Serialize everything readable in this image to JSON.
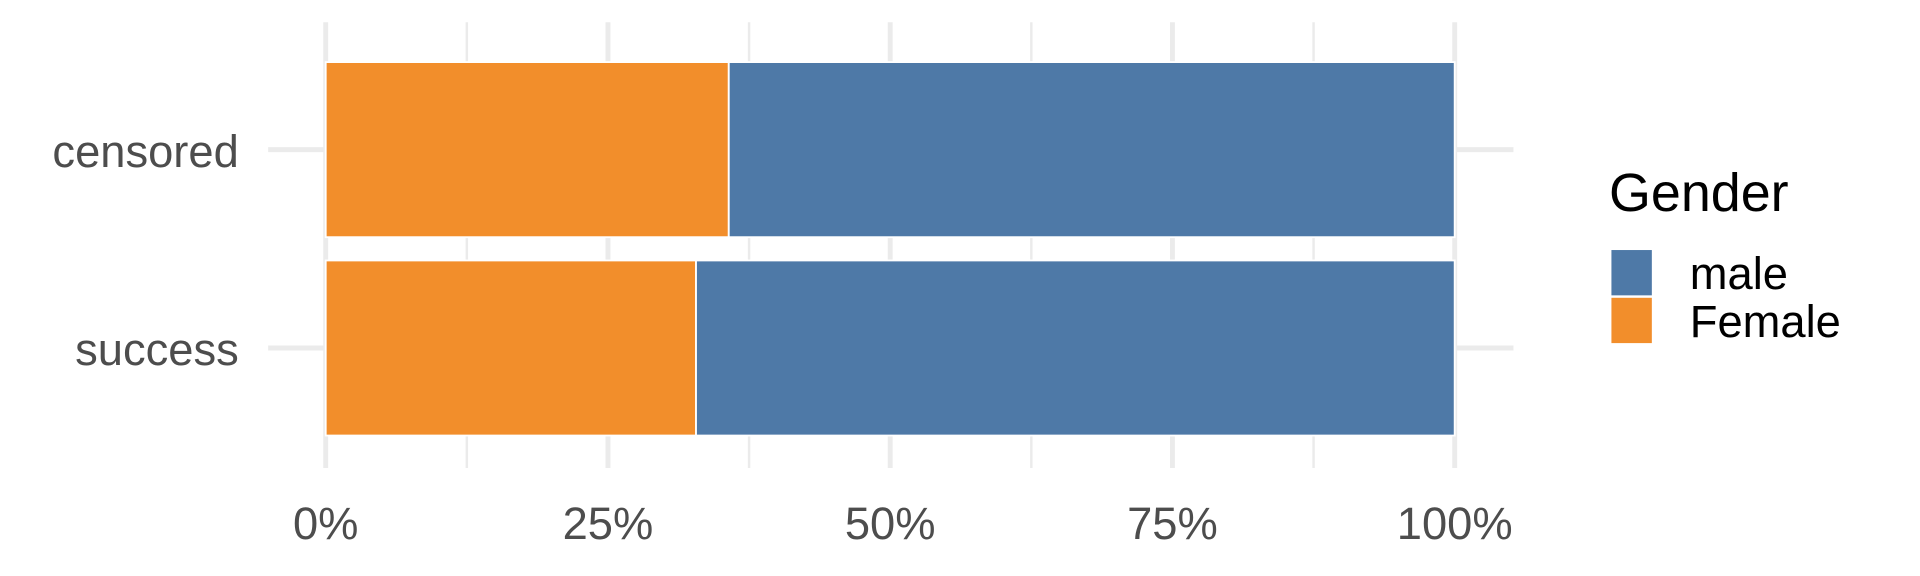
{
  "chart_data": {
    "type": "bar",
    "orientation": "horizontal",
    "stacked": "percent",
    "categories": [
      "censored",
      "success"
    ],
    "series": [
      {
        "name": "Female",
        "color": "#F28E2B",
        "values": [
          0.357,
          0.328
        ]
      },
      {
        "name": "male",
        "color": "#4E79A7",
        "values": [
          0.643,
          0.672
        ]
      }
    ],
    "xlim": [
      0,
      1
    ],
    "xticks": [
      {
        "value": 0,
        "label": "0%"
      },
      {
        "value": 0.25,
        "label": "25%"
      },
      {
        "value": 0.5,
        "label": "50%"
      },
      {
        "value": 0.75,
        "label": "75%"
      },
      {
        "value": 1,
        "label": "100%"
      }
    ],
    "grid": true,
    "legend": {
      "title": "Gender",
      "position": "right",
      "entries": [
        "male",
        "Female"
      ]
    }
  }
}
